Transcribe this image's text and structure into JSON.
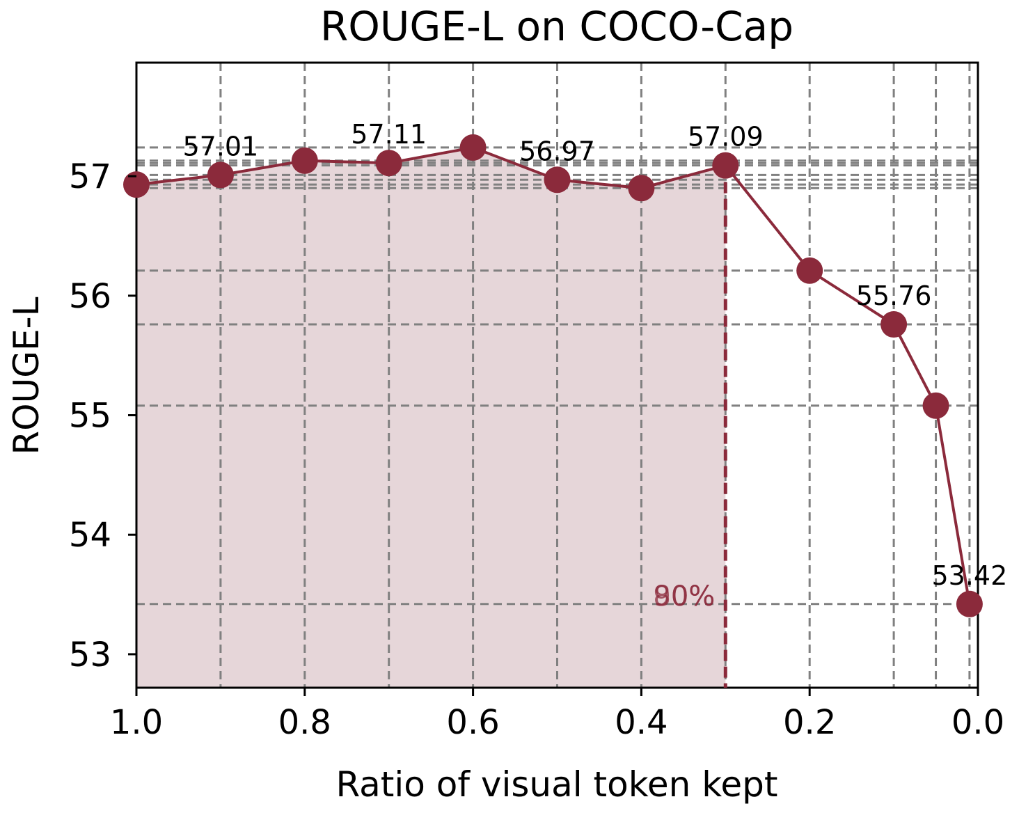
{
  "chart_data": {
    "type": "line",
    "title": "ROUGE-L on COCO-Cap",
    "xlabel": "Ratio of visual token kept",
    "ylabel": "ROUGE-L",
    "xlim": [
      1.0,
      0.0
    ],
    "ylim": [
      52.72,
      57.95
    ],
    "x_inverted": true,
    "grid": true,
    "xticks": [
      1.0,
      0.8,
      0.6,
      0.4,
      0.2,
      0.0
    ],
    "xtick_labels": [
      "1.0",
      "0.8",
      "0.6",
      "0.4",
      "0.2",
      "0.0"
    ],
    "yticks": [
      53,
      54,
      55,
      56,
      57
    ],
    "ytick_labels": [
      "53",
      "54",
      "55",
      "56",
      "57"
    ],
    "series": [
      {
        "x": [
          1.0,
          0.9,
          0.8,
          0.7,
          0.6,
          0.5,
          0.4,
          0.3,
          0.2,
          0.1,
          0.05,
          0.01
        ],
        "y": [
          56.93,
          57.01,
          57.13,
          57.11,
          57.24,
          56.97,
          56.9,
          57.09,
          56.21,
          55.76,
          55.08,
          53.42
        ],
        "color": "#8b2a3b"
      }
    ],
    "data_labels": [
      {
        "x": 0.9,
        "y": 57.01,
        "text": "57.01"
      },
      {
        "x": 0.7,
        "y": 57.11,
        "text": "57.11"
      },
      {
        "x": 0.5,
        "y": 56.97,
        "text": "56.97"
      },
      {
        "x": 0.3,
        "y": 57.09,
        "text": "57.09"
      },
      {
        "x": 0.1,
        "y": 55.76,
        "text": "55.76"
      },
      {
        "x": 0.01,
        "y": 53.42,
        "text": "53.42"
      }
    ],
    "threshold": {
      "x": 0.3,
      "label": "90%",
      "label_overlap": "80%",
      "color": "#8b2a3b"
    },
    "shaded_region": {
      "x_from": 1.0,
      "x_to": 0.3,
      "color": "#e6d6d9"
    }
  }
}
